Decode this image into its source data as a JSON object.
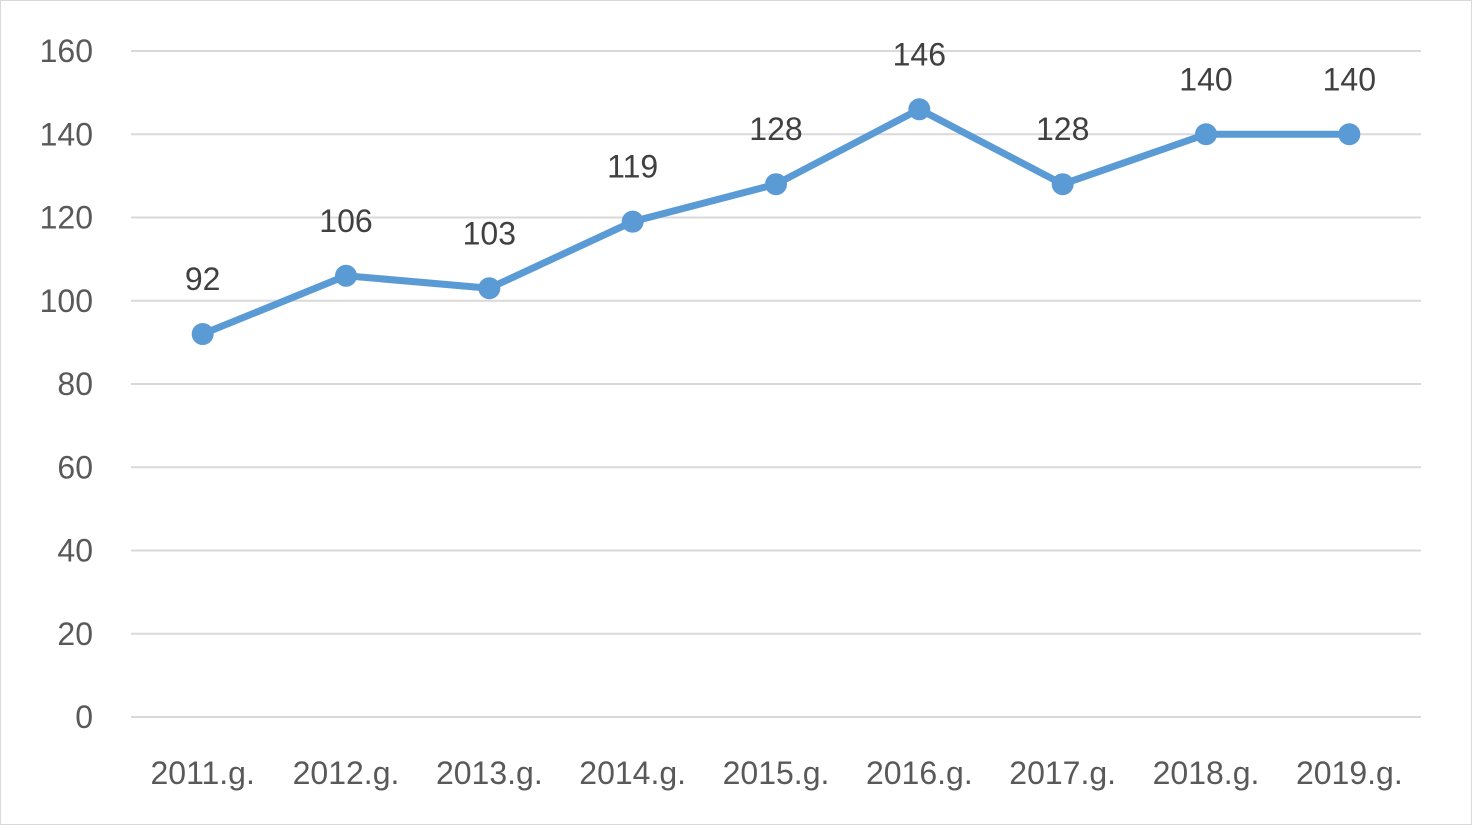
{
  "chart_data": {
    "type": "line",
    "title": "",
    "xlabel": "",
    "ylabel": "",
    "categories": [
      "2011.g.",
      "2012.g.",
      "2013.g.",
      "2014.g.",
      "2015.g.",
      "2016.g.",
      "2017.g.",
      "2018.g.",
      "2019.g."
    ],
    "series": [
      {
        "values": [
          92,
          106,
          103,
          119,
          128,
          146,
          128,
          140,
          140
        ],
        "color": "#5b9bd5"
      }
    ],
    "ylim": [
      0,
      160
    ],
    "yticks": [
      0,
      20,
      40,
      60,
      80,
      100,
      120,
      140,
      160
    ],
    "grid": true,
    "legend": "none",
    "data_labels": true
  }
}
